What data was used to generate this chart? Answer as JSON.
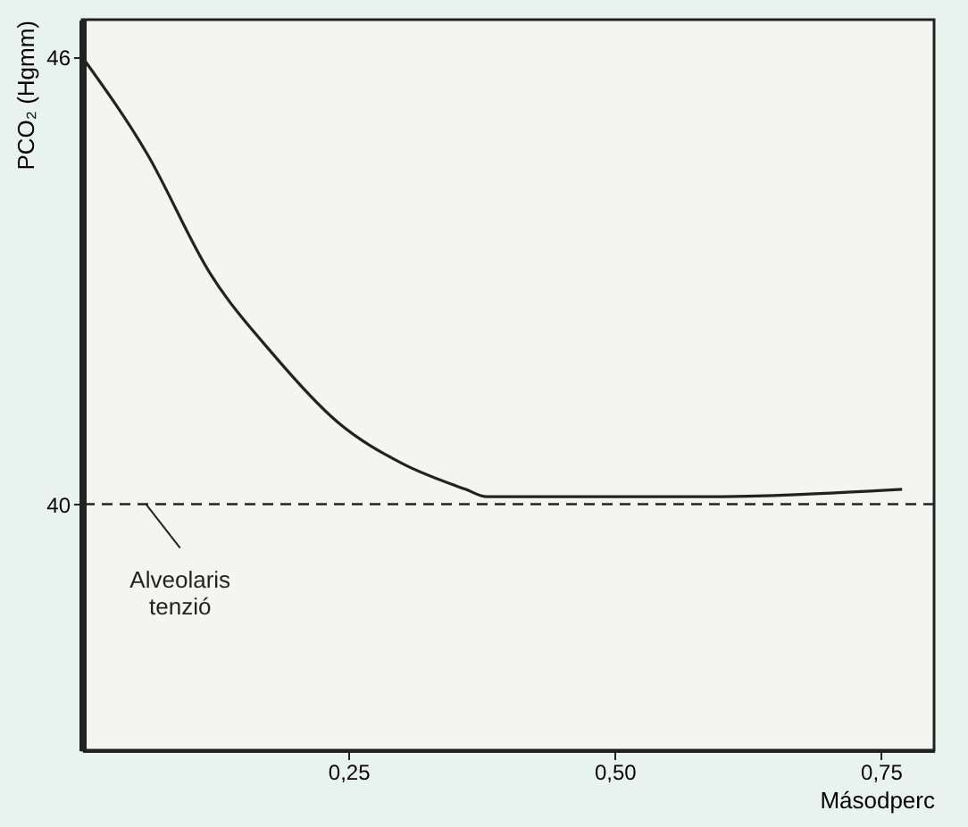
{
  "chart_data": {
    "type": "line",
    "ylabel": "PCO₂ (Hgmm)",
    "xlabel": "Másodperc",
    "x": [
      0,
      0.061,
      0.12,
      0.18,
      0.24,
      0.3,
      0.36,
      0.38,
      0.58,
      0.77
    ],
    "series": [
      {
        "color": "#222222",
        "values": [
          46.0,
          44.7,
          43.1,
          42.0,
          41.1,
          40.55,
          40.2,
          40.1,
          40.1,
          40.2
        ]
      }
    ],
    "xlim": [
      0,
      0.8
    ],
    "ylim": [
      36.7,
      46.5
    ],
    "xticks": [
      {
        "value": 0.25,
        "label": "0,25"
      },
      {
        "value": 0.5,
        "label": "0,50"
      },
      {
        "value": 0.75,
        "label": "0,75"
      }
    ],
    "yticks": [
      40,
      46
    ],
    "ref_lines": [
      {
        "axis": "y",
        "value": 40,
        "line_style": "dashed",
        "color": "#222222"
      }
    ],
    "annotations": [
      {
        "text": "Alveolaris tenzió",
        "x": 0.06,
        "y": 40
      }
    ],
    "grid": false,
    "marker": "none",
    "line_style": "solid"
  }
}
